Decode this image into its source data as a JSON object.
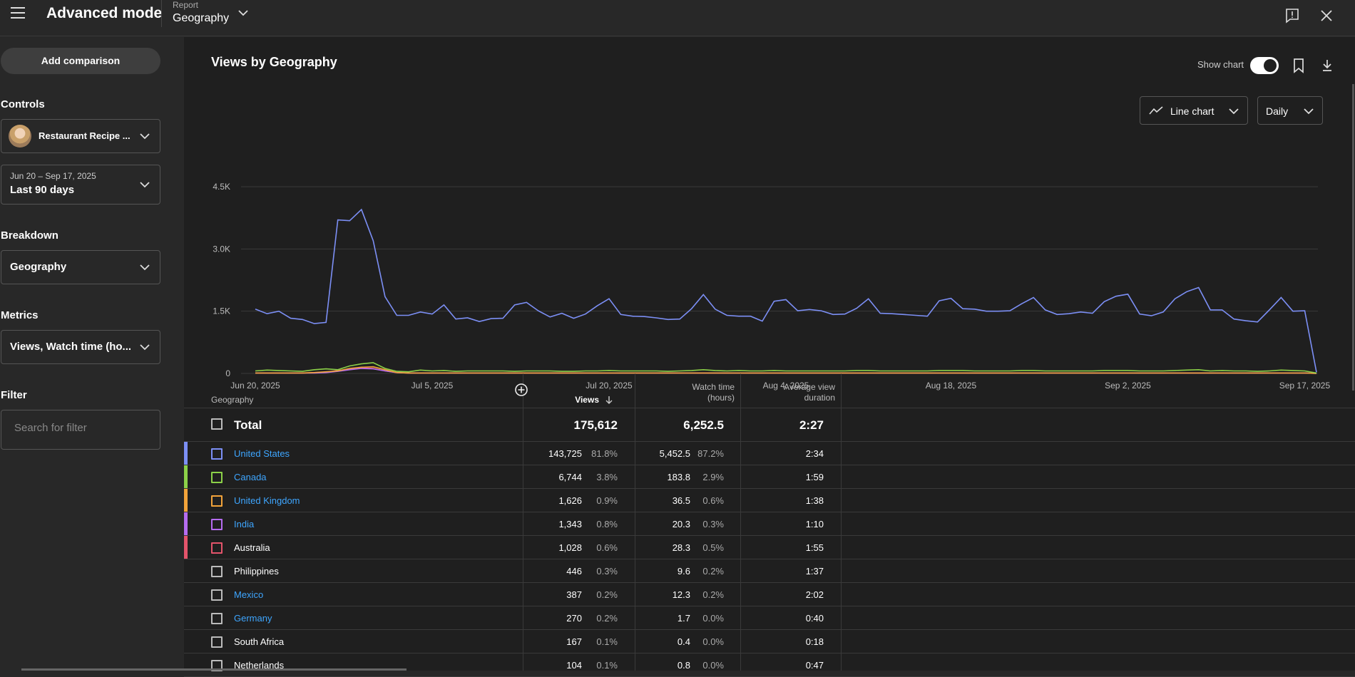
{
  "header": {
    "app_title": "Advanced mode",
    "report_label": "Report",
    "report_value": "Geography"
  },
  "sidebar": {
    "add_comparison": "Add comparison",
    "controls_label": "Controls",
    "channel": "Restaurant Recipe ...",
    "date_range_small": "Jun 20 – Sep 17, 2025",
    "date_range": "Last 90 days",
    "breakdown_label": "Breakdown",
    "breakdown_value": "Geography",
    "metrics_label": "Metrics",
    "metrics_value": "Views, Watch time (ho...",
    "filter_label": "Filter",
    "filter_placeholder": "Search for filter"
  },
  "chart_header": {
    "title": "Views by Geography",
    "show_chart_label": "Show chart",
    "chart_type": "Line chart",
    "period": "Daily"
  },
  "colors": {
    "us": "#7c8ff5",
    "canada": "#8cd148",
    "uk": "#f2a33a",
    "india": "#b56cf0",
    "australia": "#e4546b"
  },
  "chart_data": {
    "type": "line",
    "x_tick_labels": [
      "Jun 20, 2025",
      "Jul 5, 2025",
      "Jul 20, 2025",
      "Aug 4, 2025",
      "Aug 18, 2025",
      "Sep 2, 2025",
      "Sep 17, 2025"
    ],
    "y_tick_labels": [
      "0",
      "1.5K",
      "3.0K",
      "4.5K"
    ],
    "ylim": [
      0,
      4500
    ],
    "x_start": "2025-06-20",
    "x_end": "2025-09-17",
    "series": [
      {
        "name": "United States",
        "color": "#7c8ff5",
        "values": [
          1550,
          1440,
          1500,
          1330,
          1300,
          1200,
          1230,
          3700,
          3680,
          3950,
          3200,
          1850,
          1400,
          1400,
          1480,
          1430,
          1650,
          1310,
          1340,
          1250,
          1320,
          1330,
          1650,
          1710,
          1510,
          1360,
          1450,
          1330,
          1430,
          1630,
          1800,
          1420,
          1380,
          1370,
          1340,
          1300,
          1310,
          1560,
          1900,
          1550,
          1400,
          1380,
          1380,
          1260,
          1740,
          1780,
          1510,
          1540,
          1510,
          1420,
          1430,
          1570,
          1800,
          1450,
          1440,
          1420,
          1400,
          1380,
          1750,
          1810,
          1560,
          1550,
          1500,
          1500,
          1510,
          1680,
          1830,
          1530,
          1420,
          1440,
          1480,
          1450,
          1730,
          1860,
          1910,
          1430,
          1390,
          1480,
          1800,
          1970,
          2070,
          1530,
          1530,
          1310,
          1270,
          1240,
          1530,
          1830,
          1500,
          1510,
          30
        ]
      },
      {
        "name": "Canada",
        "color": "#8cd148",
        "values": [
          60,
          80,
          70,
          60,
          50,
          90,
          110,
          90,
          180,
          230,
          260,
          120,
          50,
          40,
          80,
          60,
          70,
          50,
          60,
          60,
          60,
          60,
          50,
          60,
          60,
          60,
          50,
          50,
          60,
          60,
          70,
          60,
          60,
          60,
          60,
          50,
          60,
          70,
          90,
          70,
          60,
          70,
          60,
          60,
          70,
          60,
          60,
          60,
          60,
          60,
          60,
          70,
          70,
          60,
          60,
          60,
          60,
          60,
          70,
          70,
          70,
          60,
          60,
          60,
          60,
          70,
          70,
          60,
          60,
          60,
          60,
          60,
          70,
          70,
          70,
          60,
          60,
          60,
          70,
          80,
          90,
          60,
          70,
          60,
          60,
          50,
          60,
          80,
          70,
          60,
          10
        ]
      },
      {
        "name": "United Kingdom",
        "color": "#f2a33a",
        "values": [
          10,
          10,
          10,
          10,
          10,
          20,
          40,
          60,
          120,
          150,
          160,
          90,
          20,
          10,
          10,
          10,
          10,
          10,
          10,
          10,
          10,
          10,
          10,
          10,
          10,
          10,
          10,
          10,
          10,
          10,
          10,
          10,
          10,
          10,
          10,
          10,
          10,
          10,
          10,
          10,
          10,
          10,
          10,
          10,
          10,
          10,
          10,
          10,
          10,
          10,
          10,
          10,
          10,
          10,
          10,
          10,
          10,
          10,
          10,
          10,
          10,
          10,
          10,
          10,
          10,
          10,
          10,
          10,
          10,
          10,
          10,
          10,
          10,
          10,
          10,
          10,
          10,
          10,
          10,
          10,
          10,
          10,
          10,
          10,
          10,
          10,
          10,
          10,
          10,
          10,
          0
        ]
      },
      {
        "name": "India",
        "color": "#b56cf0",
        "values": [
          10,
          10,
          10,
          10,
          10,
          10,
          20,
          50,
          90,
          120,
          110,
          60,
          20,
          10,
          10,
          10,
          10,
          10,
          10,
          10,
          10,
          10,
          10,
          10,
          10,
          10,
          10,
          10,
          10,
          10,
          10,
          10,
          10,
          10,
          10,
          10,
          10,
          10,
          10,
          10,
          10,
          10,
          10,
          10,
          10,
          10,
          10,
          10,
          10,
          10,
          10,
          10,
          10,
          10,
          10,
          10,
          10,
          10,
          10,
          10,
          10,
          10,
          10,
          10,
          10,
          10,
          10,
          10,
          10,
          10,
          10,
          10,
          10,
          10,
          10,
          10,
          10,
          10,
          10,
          10,
          10,
          10,
          10,
          10,
          10,
          10,
          10,
          10,
          10,
          10,
          0
        ]
      },
      {
        "name": "Australia",
        "color": "#e4546b",
        "values": [
          10,
          10,
          10,
          10,
          10,
          20,
          30,
          70,
          100,
          140,
          120,
          60,
          20,
          10,
          10,
          10,
          10,
          10,
          10,
          10,
          10,
          10,
          10,
          10,
          10,
          10,
          10,
          10,
          10,
          10,
          10,
          10,
          10,
          10,
          10,
          10,
          10,
          10,
          10,
          10,
          10,
          10,
          10,
          10,
          10,
          10,
          10,
          10,
          10,
          10,
          10,
          10,
          10,
          10,
          10,
          10,
          10,
          10,
          10,
          10,
          10,
          10,
          10,
          10,
          10,
          10,
          10,
          10,
          10,
          10,
          10,
          10,
          10,
          10,
          10,
          10,
          10,
          10,
          10,
          10,
          10,
          10,
          10,
          10,
          10,
          10,
          10,
          10,
          10,
          10,
          0
        ]
      }
    ]
  },
  "table": {
    "headers": {
      "geography": "Geography",
      "views": "Views",
      "watch_time_1": "Watch time",
      "watch_time_2": "(hours)",
      "avd_1": "Average view",
      "avd_2": "duration"
    },
    "total": {
      "name": "Total",
      "views": "175,612",
      "watch": "6,252.5",
      "avd": "2:27"
    },
    "rows": [
      {
        "name": "United States",
        "views": "143,725",
        "views_pct": "81.8%",
        "watch": "5,452.5",
        "watch_pct": "87.2%",
        "avd": "2:34",
        "color": "#7c8ff5",
        "link": true
      },
      {
        "name": "Canada",
        "views": "6,744",
        "views_pct": "3.8%",
        "watch": "183.8",
        "watch_pct": "2.9%",
        "avd": "1:59",
        "color": "#8cd148",
        "link": true
      },
      {
        "name": "United Kingdom",
        "views": "1,626",
        "views_pct": "0.9%",
        "watch": "36.5",
        "watch_pct": "0.6%",
        "avd": "1:38",
        "color": "#f2a33a",
        "link": true
      },
      {
        "name": "India",
        "views": "1,343",
        "views_pct": "0.8%",
        "watch": "20.3",
        "watch_pct": "0.3%",
        "avd": "1:10",
        "color": "#b56cf0",
        "link": true
      },
      {
        "name": "Australia",
        "views": "1,028",
        "views_pct": "0.6%",
        "watch": "28.3",
        "watch_pct": "0.5%",
        "avd": "1:55",
        "color": "#e4546b",
        "link": false
      },
      {
        "name": "Philippines",
        "views": "446",
        "views_pct": "0.3%",
        "watch": "9.6",
        "watch_pct": "0.2%",
        "avd": "1:37",
        "color": "",
        "link": false
      },
      {
        "name": "Mexico",
        "views": "387",
        "views_pct": "0.2%",
        "watch": "12.3",
        "watch_pct": "0.2%",
        "avd": "2:02",
        "color": "",
        "link": true
      },
      {
        "name": "Germany",
        "views": "270",
        "views_pct": "0.2%",
        "watch": "1.7",
        "watch_pct": "0.0%",
        "avd": "0:40",
        "color": "",
        "link": true
      },
      {
        "name": "South Africa",
        "views": "167",
        "views_pct": "0.1%",
        "watch": "0.4",
        "watch_pct": "0.0%",
        "avd": "0:18",
        "color": "",
        "link": false
      },
      {
        "name": "Netherlands",
        "views": "104",
        "views_pct": "0.1%",
        "watch": "0.8",
        "watch_pct": "0.0%",
        "avd": "0:47",
        "color": "",
        "link": false
      }
    ]
  }
}
